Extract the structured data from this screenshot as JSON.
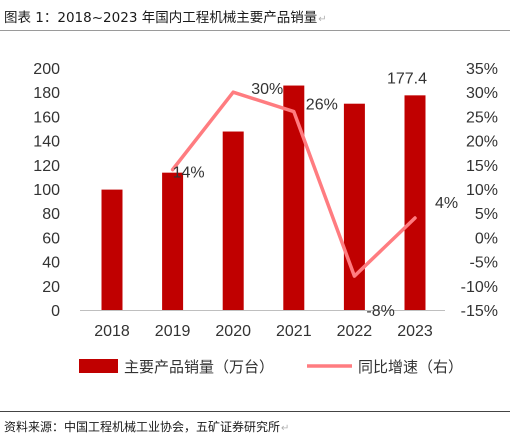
{
  "title": "图表 1：2018~2023 年国内工程机械主要产品销量",
  "source": "资料来源：中国工程机械工业协会，五矿证券研究所",
  "return_glyph": "↵",
  "colors": {
    "bar": "#c00000",
    "line": "#ff7c80",
    "text": "#333333"
  },
  "chart_data": {
    "type": "bar+line",
    "categories": [
      "2018",
      "2019",
      "2020",
      "2021",
      "2022",
      "2023"
    ],
    "series": [
      {
        "name": "主要产品销量（万台）",
        "type": "bar",
        "axis": "left",
        "values": [
          99.5,
          113.5,
          147.5,
          185.5,
          170.5,
          177.4
        ]
      },
      {
        "name": "同比增速（右）",
        "type": "line",
        "axis": "right",
        "values": [
          null,
          14,
          30,
          26,
          -8,
          4
        ]
      }
    ],
    "y_left": {
      "min": 0,
      "max": 200,
      "ticks": [
        "0",
        "20",
        "40",
        "60",
        "80",
        "100",
        "120",
        "140",
        "160",
        "180",
        "200"
      ]
    },
    "y_right": {
      "min": -15,
      "max": 35,
      "ticks": [
        "-15%",
        "-10%",
        "-5%",
        "0%",
        "5%",
        "10%",
        "15%",
        "20%",
        "25%",
        "30%",
        "35%"
      ]
    },
    "bar_labels": [
      null,
      null,
      null,
      null,
      null,
      "177.4"
    ],
    "line_labels": [
      null,
      "14%",
      "30%",
      "26%",
      "-8%",
      "4%"
    ],
    "legend": [
      {
        "name": "主要产品销量（万台）",
        "kind": "bar"
      },
      {
        "name": "同比增速（右）",
        "kind": "line"
      }
    ],
    "legend_position": "bottom",
    "grid": false
  }
}
